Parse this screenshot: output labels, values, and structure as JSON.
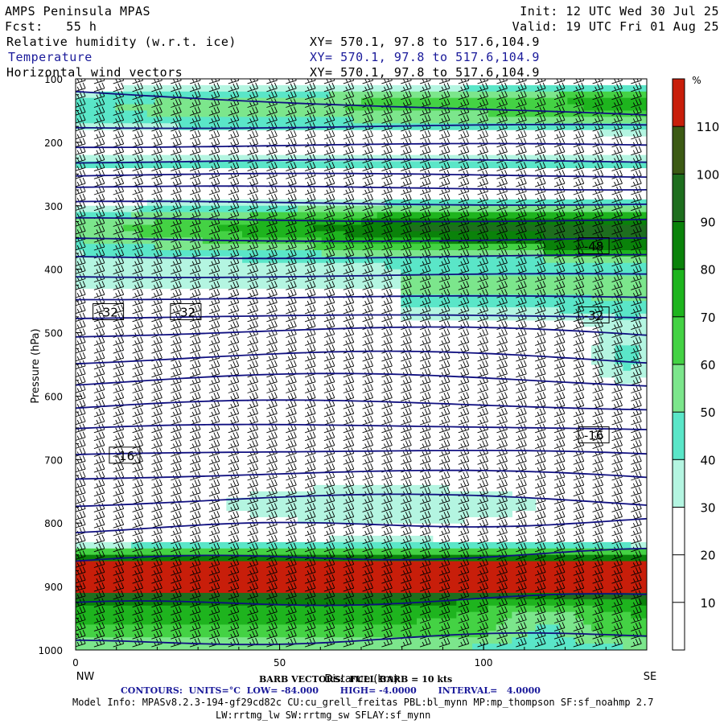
{
  "header": {
    "model": "AMPS Peninsula MPAS",
    "forecast": "Fcst:   55 h",
    "init": "Init: 12 UTC Wed 30 Jul 25",
    "valid": "Valid: 19 UTC Fri 01 Aug 25",
    "field1": "Relative humidity (w.r.t. ice)",
    "field2": "Temperature",
    "field3": "Horizontal wind vectors",
    "xy1": "XY= 570.1, 97.8 to 517.6,104.9",
    "xy2": "XY= 570.1, 97.8 to 517.6,104.9",
    "xy3": "XY= 570.1, 97.8 to 517.6,104.9"
  },
  "footer": {
    "barb": "BARB VECTORS:  FULL BARB = 10 kts",
    "contours": "CONTOURS:  UNITS=°C  LOW= -84.000       HIGH= -4.0000       INTERVAL=   4.0000",
    "model_info": "Model Info: MPASv8.2.3-194-gf29cd82c CU:cu_grell_freitas PBL:bl_mynn MP:mp_thompson SF:sf_noahmp 2.7",
    "model_info2": "LW:rrtmg_lw SW:rrtmg_sw SFLAY:sf_mynn"
  },
  "colors": {
    "temp_contour": "#101080",
    "rh_levels": [
      "#ffffff",
      "#ffffff",
      "#ffffff",
      "#b4f5e1",
      "#5ae6c8",
      "#7ce68c",
      "#44d244",
      "#1eb41e",
      "#0a820a",
      "#1e6e1e",
      "#3c5a14",
      "#c81e0a"
    ]
  },
  "chart_data": {
    "type": "cross-section",
    "xlabel": "Distance (km)",
    "ylabel": "Pressure (hPa)",
    "xlim": [
      0,
      140
    ],
    "ylim": [
      1000,
      100
    ],
    "x_ticks": [
      0,
      50,
      100
    ],
    "y_ticks": [
      100,
      200,
      300,
      400,
      500,
      600,
      700,
      800,
      900,
      1000
    ],
    "left_label": "NW",
    "right_label": "SE",
    "colorbar": {
      "unit": "%",
      "ticks": [
        10,
        20,
        30,
        40,
        50,
        60,
        70,
        80,
        90,
        100,
        110
      ],
      "range": [
        0,
        120
      ]
    },
    "temperature_contour_labels": [
      {
        "value": "-48",
        "x": 127,
        "p": 363
      },
      {
        "value": "-32",
        "x": 8,
        "p": 467
      },
      {
        "value": "-32",
        "x": 27,
        "p": 467
      },
      {
        "value": "-32",
        "x": 127,
        "p": 472
      },
      {
        "value": "-16",
        "x": 127,
        "p": 661
      },
      {
        "value": "-16",
        "x": 12,
        "p": 693
      }
    ],
    "temperature_contour_pressures": [
      120,
      175,
      205,
      230,
      252,
      272,
      296,
      322,
      353,
      380,
      410,
      445,
      475,
      505,
      545,
      580,
      620,
      655,
      695,
      730,
      770,
      810,
      860,
      930,
      990
    ]
  }
}
